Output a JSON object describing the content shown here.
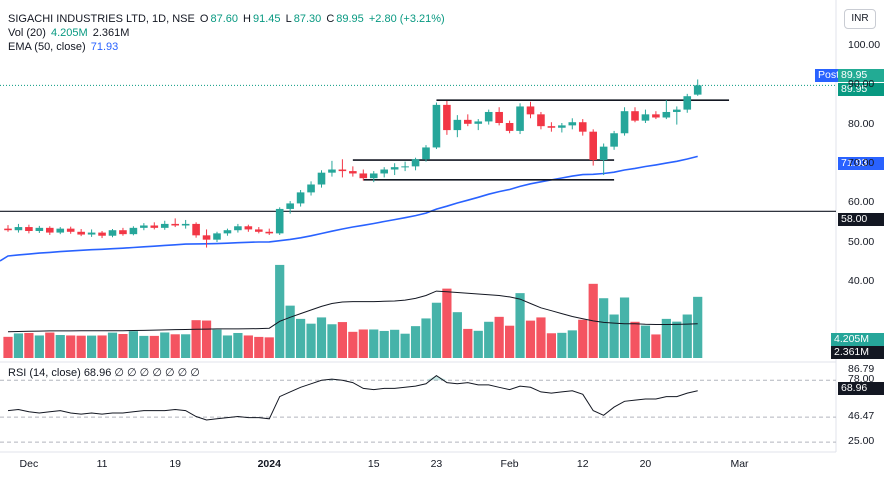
{
  "header": {
    "symbol": "SIGACHI INDUSTRIES LTD, 1D, NSE",
    "o_label": "O",
    "o": "87.60",
    "h_label": "H",
    "h": "91.45",
    "l_label": "L",
    "l": "87.30",
    "c_label": "C",
    "c": "89.95",
    "change": "+2.80 (+3.21%)",
    "vol_label": "Vol (20)",
    "vol_value": "4.205M",
    "vol_ma": "2.361M",
    "ema_label": "EMA (50, close)",
    "ema_value": "71.93",
    "rsi_label": "RSI (14, close)",
    "rsi_value": "68.96",
    "rsi_extras": "∅ ∅ ∅ ∅ ∅ ∅ ∅",
    "currency": "INR"
  },
  "tags": {
    "post": "Post",
    "post_price": "89.95",
    "last_price": "89.95",
    "ema": "71.93",
    "hline": "58.00",
    "vol": "4.205M",
    "vol_ma": "2.361M",
    "rsi": "68.96"
  },
  "price_axis": [
    "100.00",
    "90.00",
    "80.00",
    "70.00",
    "60.00",
    "50.00",
    "40.00"
  ],
  "rsi_axis": [
    "86.79",
    "78.00",
    "46.47",
    "25.00"
  ],
  "time_axis": [
    {
      "label": "Dec",
      "bold": false
    },
    {
      "label": "11",
      "bold": false
    },
    {
      "label": "19",
      "bold": false
    },
    {
      "label": "2024",
      "bold": true
    },
    {
      "label": "15",
      "bold": false
    },
    {
      "label": "23",
      "bold": false
    },
    {
      "label": "Feb",
      "bold": false
    },
    {
      "label": "12",
      "bold": false
    },
    {
      "label": "20",
      "bold": false
    },
    {
      "label": "Mar",
      "bold": false
    }
  ],
  "colors": {
    "up": "#26a69a",
    "down": "#f23645",
    "ema": "#2962ff",
    "line": "#131722"
  },
  "chart_data": {
    "type": "candlestick",
    "title": "SIGACHI INDUSTRIES LTD, 1D, NSE",
    "ylim": [
      36,
      104
    ],
    "candles": [
      {
        "o": 53.6,
        "h": 54.5,
        "l": 52.8,
        "c": 53.2
      },
      {
        "o": 53.2,
        "h": 54.8,
        "l": 52.6,
        "c": 54.0
      },
      {
        "o": 54.0,
        "h": 54.6,
        "l": 52.4,
        "c": 53.0
      },
      {
        "o": 53.0,
        "h": 54.3,
        "l": 52.5,
        "c": 53.8
      },
      {
        "o": 53.8,
        "h": 54.2,
        "l": 52.0,
        "c": 52.6
      },
      {
        "o": 52.6,
        "h": 54.0,
        "l": 52.2,
        "c": 53.6
      },
      {
        "o": 53.6,
        "h": 54.1,
        "l": 52.3,
        "c": 52.8
      },
      {
        "o": 52.8,
        "h": 53.5,
        "l": 51.7,
        "c": 52.1
      },
      {
        "o": 52.1,
        "h": 53.4,
        "l": 51.5,
        "c": 52.6
      },
      {
        "o": 52.6,
        "h": 53.0,
        "l": 51.2,
        "c": 51.8
      },
      {
        "o": 51.8,
        "h": 53.5,
        "l": 51.4,
        "c": 53.2
      },
      {
        "o": 53.2,
        "h": 53.8,
        "l": 51.8,
        "c": 52.2
      },
      {
        "o": 52.2,
        "h": 54.2,
        "l": 51.9,
        "c": 53.8
      },
      {
        "o": 53.8,
        "h": 55.0,
        "l": 53.2,
        "c": 54.4
      },
      {
        "o": 54.4,
        "h": 55.2,
        "l": 53.4,
        "c": 53.8
      },
      {
        "o": 53.8,
        "h": 55.6,
        "l": 53.3,
        "c": 54.8
      },
      {
        "o": 54.8,
        "h": 56.2,
        "l": 54.0,
        "c": 54.4
      },
      {
        "o": 54.4,
        "h": 55.8,
        "l": 53.6,
        "c": 54.8
      },
      {
        "o": 54.8,
        "h": 55.2,
        "l": 51.3,
        "c": 51.9
      },
      {
        "o": 51.9,
        "h": 53.4,
        "l": 48.8,
        "c": 50.8
      },
      {
        "o": 50.8,
        "h": 52.8,
        "l": 50.2,
        "c": 52.4
      },
      {
        "o": 52.4,
        "h": 53.6,
        "l": 51.8,
        "c": 53.2
      },
      {
        "o": 53.2,
        "h": 54.8,
        "l": 52.6,
        "c": 54.2
      },
      {
        "o": 54.2,
        "h": 54.6,
        "l": 52.8,
        "c": 53.4
      },
      {
        "o": 53.4,
        "h": 54.0,
        "l": 52.4,
        "c": 52.8
      },
      {
        "o": 52.8,
        "h": 53.6,
        "l": 52.0,
        "c": 52.4
      },
      {
        "o": 52.4,
        "h": 59.0,
        "l": 52.0,
        "c": 58.6
      },
      {
        "o": 58.6,
        "h": 60.6,
        "l": 57.4,
        "c": 60.0
      },
      {
        "o": 60.0,
        "h": 63.4,
        "l": 59.2,
        "c": 62.8
      },
      {
        "o": 62.8,
        "h": 65.6,
        "l": 62.0,
        "c": 64.8
      },
      {
        "o": 64.8,
        "h": 68.4,
        "l": 64.0,
        "c": 67.8
      },
      {
        "o": 67.8,
        "h": 70.8,
        "l": 66.8,
        "c": 68.6
      },
      {
        "o": 68.6,
        "h": 71.2,
        "l": 66.6,
        "c": 68.2
      },
      {
        "o": 68.2,
        "h": 69.4,
        "l": 66.8,
        "c": 67.6
      },
      {
        "o": 67.6,
        "h": 68.6,
        "l": 65.8,
        "c": 66.4
      },
      {
        "o": 66.4,
        "h": 68.2,
        "l": 65.4,
        "c": 67.6
      },
      {
        "o": 67.6,
        "h": 69.2,
        "l": 66.6,
        "c": 68.6
      },
      {
        "o": 68.6,
        "h": 70.2,
        "l": 67.2,
        "c": 69.2
      },
      {
        "o": 69.2,
        "h": 70.6,
        "l": 68.2,
        "c": 69.4
      },
      {
        "o": 69.4,
        "h": 71.6,
        "l": 68.4,
        "c": 71.2
      },
      {
        "o": 71.2,
        "h": 74.8,
        "l": 70.6,
        "c": 74.2
      },
      {
        "o": 74.2,
        "h": 85.6,
        "l": 73.8,
        "c": 85.0
      },
      {
        "o": 85.0,
        "h": 86.0,
        "l": 77.4,
        "c": 78.6
      },
      {
        "o": 78.6,
        "h": 82.4,
        "l": 76.8,
        "c": 81.2
      },
      {
        "o": 81.2,
        "h": 82.6,
        "l": 79.6,
        "c": 80.2
      },
      {
        "o": 80.2,
        "h": 81.4,
        "l": 78.6,
        "c": 80.8
      },
      {
        "o": 80.8,
        "h": 83.8,
        "l": 80.0,
        "c": 83.2
      },
      {
        "o": 83.2,
        "h": 84.4,
        "l": 79.8,
        "c": 80.4
      },
      {
        "o": 80.4,
        "h": 81.0,
        "l": 77.8,
        "c": 78.4
      },
      {
        "o": 78.4,
        "h": 85.4,
        "l": 77.6,
        "c": 84.6
      },
      {
        "o": 84.6,
        "h": 85.8,
        "l": 81.6,
        "c": 82.6
      },
      {
        "o": 82.6,
        "h": 83.2,
        "l": 78.8,
        "c": 79.6
      },
      {
        "o": 79.6,
        "h": 80.6,
        "l": 78.2,
        "c": 79.2
      },
      {
        "o": 79.2,
        "h": 80.4,
        "l": 78.0,
        "c": 79.8
      },
      {
        "o": 79.8,
        "h": 81.6,
        "l": 78.8,
        "c": 80.6
      },
      {
        "o": 80.6,
        "h": 81.4,
        "l": 77.2,
        "c": 78.2
      },
      {
        "o": 78.2,
        "h": 78.8,
        "l": 69.6,
        "c": 71.0
      },
      {
        "o": 71.0,
        "h": 75.2,
        "l": 67.2,
        "c": 74.4
      },
      {
        "o": 74.4,
        "h": 78.4,
        "l": 73.6,
        "c": 77.8
      },
      {
        "o": 77.8,
        "h": 84.4,
        "l": 77.2,
        "c": 83.4
      },
      {
        "o": 83.4,
        "h": 84.4,
        "l": 80.6,
        "c": 81.0
      },
      {
        "o": 81.0,
        "h": 83.8,
        "l": 80.4,
        "c": 82.6
      },
      {
        "o": 82.6,
        "h": 83.4,
        "l": 81.4,
        "c": 81.8
      },
      {
        "o": 81.8,
        "h": 86.2,
        "l": 81.4,
        "c": 83.2
      },
      {
        "o": 83.2,
        "h": 84.6,
        "l": 80.0,
        "c": 83.8
      },
      {
        "o": 83.8,
        "h": 87.8,
        "l": 83.0,
        "c": 87.2
      },
      {
        "o": 87.6,
        "h": 91.45,
        "l": 87.3,
        "c": 89.95
      }
    ],
    "volume_ma": [
      1.8,
      1.82,
      1.84,
      1.85,
      1.86,
      1.86,
      1.86,
      1.87,
      1.87,
      1.87,
      1.88,
      1.88,
      1.89,
      1.9,
      1.92,
      1.93,
      1.95,
      1.96,
      1.98,
      1.99,
      2.0,
      2.0,
      2.0,
      2.01,
      2.02,
      2.05,
      2.52,
      2.8,
      3.05,
      3.3,
      3.55,
      3.75,
      3.85,
      3.88,
      3.88,
      3.88,
      3.9,
      3.92,
      3.98,
      4.1,
      4.3,
      4.6,
      4.55,
      4.5,
      4.45,
      4.4,
      4.35,
      4.3,
      4.2,
      4.05,
      3.75,
      3.45,
      3.25,
      3.05,
      2.85,
      2.7,
      2.55,
      2.45,
      2.4,
      2.35,
      2.35,
      2.32,
      2.3,
      2.3,
      2.31,
      2.33,
      2.361
    ],
    "rsi": [
      52,
      53,
      51,
      50,
      51,
      52,
      50,
      49,
      50,
      49,
      50,
      50,
      51,
      52,
      52,
      52,
      53,
      52,
      47,
      44,
      45,
      46,
      47,
      46,
      46,
      45,
      64,
      68,
      72,
      75,
      78,
      79,
      78,
      76,
      71,
      70,
      71,
      71,
      72,
      73,
      75,
      82,
      76,
      75,
      76,
      74,
      74,
      72,
      70,
      73,
      72,
      68,
      67,
      68,
      69,
      66,
      52,
      48,
      55,
      60,
      61,
      62,
      62,
      64,
      64,
      67,
      68.96
    ],
    "ema_start": 46.4,
    "ema_last": 71.93,
    "horizontal_lines": [
      58.0
    ],
    "trend_lines": [
      {
        "from_index": 41,
        "to_index": 69,
        "price": 86.2
      },
      {
        "from_index": 33,
        "to_index": 58,
        "price": 71.0
      },
      {
        "from_index": 34,
        "to_index": 58,
        "price": 66.0
      }
    ]
  }
}
